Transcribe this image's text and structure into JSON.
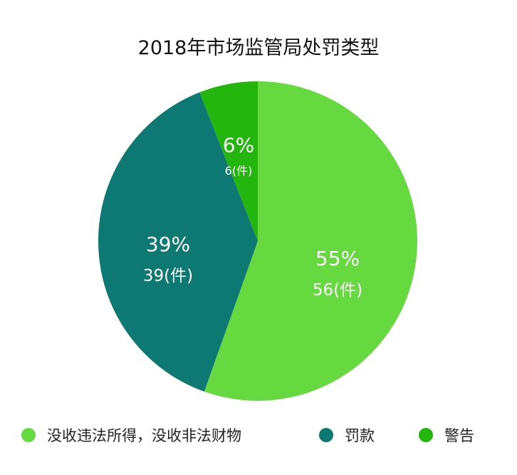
{
  "chart_data": {
    "type": "pie",
    "title": "2018年市场监管局处罚类型",
    "unit": "件",
    "slices": [
      {
        "name": "没收违法所得，没收非法财物",
        "value": 56,
        "percent_label": "55%",
        "count_label": "56(件)",
        "color": "#66d940"
      },
      {
        "name": "罚款",
        "value": 39,
        "percent_label": "39%",
        "count_label": "39(件)",
        "color": "#0e7872"
      },
      {
        "name": "警告",
        "value": 6,
        "percent_label": "6%",
        "count_label": "6(件)",
        "color": "#25b50f"
      }
    ],
    "start_angle_deg": 0,
    "direction": "clockwise",
    "legend_position": "bottom"
  }
}
